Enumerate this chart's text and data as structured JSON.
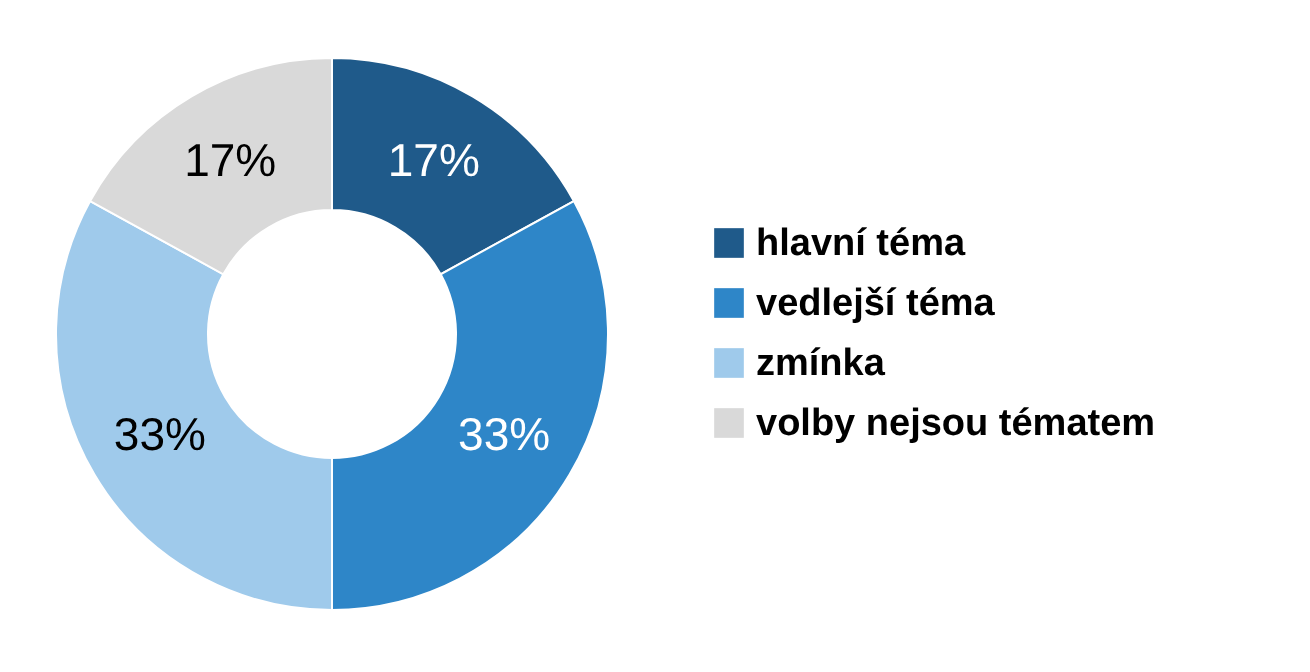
{
  "chart_data": {
    "type": "donut",
    "categories": [
      "hlavní téma",
      "vedlejší téma",
      "zmínka",
      "volby nejsou tématem"
    ],
    "values": [
      17,
      33,
      33,
      17
    ],
    "colors": [
      "#1f5a8a",
      "#2e86c8",
      "#9fcaeb",
      "#d9d9d9"
    ],
    "value_labels": [
      "17%",
      "33%",
      "33%",
      "17%"
    ],
    "legend": "right"
  }
}
